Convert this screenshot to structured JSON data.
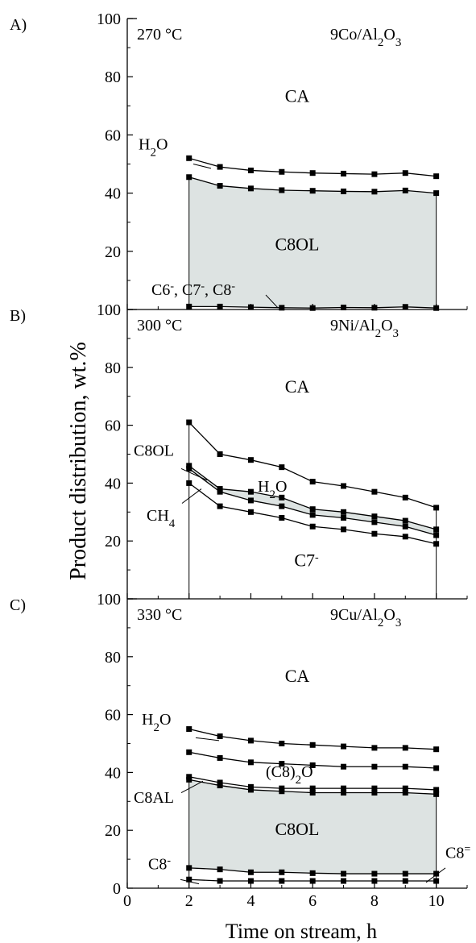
{
  "chart_data": {
    "type": "line",
    "xlabel": "Time on stream, h",
    "ylabel": "Product distribution, wt.%",
    "xlim": [
      0,
      11
    ],
    "ylim": [
      0,
      100
    ],
    "x_ticks": [
      0,
      2,
      4,
      6,
      8,
      10
    ],
    "x_tick_labels": [
      "0",
      "2",
      "4",
      "6",
      "8",
      "10"
    ],
    "y_ticks": [
      0,
      20,
      40,
      60,
      80,
      100
    ],
    "y_tick_labels": [
      "0",
      "20",
      "40",
      "60",
      "80",
      "100"
    ],
    "fill_color": "#dde3e2",
    "grid": false,
    "panels": [
      {
        "letter": "A)",
        "temperature": "270 °C",
        "catalyst": {
          "base": "9Co/Al",
          "sub1": "2",
          "mid": "O",
          "sub2": "3"
        },
        "x": [
          2,
          3,
          4,
          5,
          6,
          7,
          8,
          9,
          10
        ],
        "series": [
          {
            "name": "H2O",
            "values": [
              52,
              49,
              47.8,
              47.3,
              46.9,
              46.7,
              46.5,
              46.9,
              45.8
            ]
          },
          {
            "name": "C8OL",
            "values": [
              45.5,
              42.5,
              41.6,
              41,
              40.8,
              40.6,
              40.5,
              40.9,
              40
            ]
          },
          {
            "name": "C6-, C7-, C8-",
            "values": [
              1,
              1,
              0.8,
              0.6,
              0.5,
              0.7,
              0.6,
              0.9,
              0.5
            ]
          }
        ],
        "fill_between": [
          1,
          2
        ],
        "labels": [
          {
            "text": "CA",
            "x": 5.5,
            "y": 73
          },
          {
            "text": "C8OL",
            "x": 5.5,
            "y": 22
          },
          {
            "text": "270 °C",
            "x": 0.5,
            "y": 94
          }
        ]
      },
      {
        "letter": "B)",
        "temperature": "300 °C",
        "catalyst": {
          "base": "9Ni/Al",
          "sub1": "2",
          "mid": "O",
          "sub2": "3"
        },
        "x": [
          2,
          3,
          4,
          5,
          6,
          7,
          8,
          9,
          10
        ],
        "series": [
          {
            "name": "CA boundary",
            "values": [
              61,
              50,
              48,
              45.5,
              40.5,
              39,
              37,
              35,
              31.5
            ]
          },
          {
            "name": "C8OL",
            "values": [
              46,
              38,
              37,
              35,
              31,
              30,
              28.5,
              27,
              24
            ]
          },
          {
            "name": "H2O",
            "values": [
              45,
              37,
              34,
              32,
              29,
              28,
              26.5,
              25,
              22
            ]
          },
          {
            "name": "CH4",
            "values": [
              40,
              32,
              30,
              28,
              25,
              24,
              22.5,
              21.5,
              19
            ]
          }
        ],
        "fill_between": [
          1,
          2
        ],
        "labels": [
          {
            "text": "CA",
            "x": 5.5,
            "y": 73
          },
          {
            "text": "C7",
            "x": 5.8,
            "y": 13
          }
        ]
      },
      {
        "letter": "C)",
        "temperature": "330 °C",
        "catalyst": {
          "base": "9Cu/Al",
          "sub1": "2",
          "mid": "O",
          "sub2": "3"
        },
        "x": [
          2,
          3,
          4,
          5,
          6,
          7,
          8,
          9,
          10
        ],
        "series": [
          {
            "name": "H2O",
            "values": [
              55,
              52.5,
              51,
              50,
              49.5,
              49,
              48.5,
              48.5,
              48
            ]
          },
          {
            "name": "(C8)2O",
            "values": [
              47,
              45,
              43.5,
              43,
              42.5,
              42,
              42,
              42,
              41.5
            ]
          },
          {
            "name": "C8AL",
            "values": [
              38.5,
              36.5,
              35,
              34.5,
              34.5,
              34.5,
              34.5,
              34.5,
              34
            ]
          },
          {
            "name": "C8OL",
            "values": [
              37.5,
              35.5,
              34,
              33.5,
              33,
              33,
              33,
              33,
              32.5
            ]
          },
          {
            "name": "C8-",
            "values": [
              7,
              6.5,
              5.5,
              5.5,
              5.2,
              5,
              5,
              5,
              5
            ]
          },
          {
            "name": "C8=",
            "values": [
              3,
              2.5,
              2.5,
              2.5,
              2.5,
              2.5,
              2.5,
              2.5,
              2.5
            ]
          }
        ],
        "fill_between": [
          3,
          4
        ],
        "labels": [
          {
            "text": "CA",
            "x": 5.5,
            "y": 73
          },
          {
            "text": "C8OL",
            "x": 5.5,
            "y": 20
          }
        ]
      }
    ]
  }
}
